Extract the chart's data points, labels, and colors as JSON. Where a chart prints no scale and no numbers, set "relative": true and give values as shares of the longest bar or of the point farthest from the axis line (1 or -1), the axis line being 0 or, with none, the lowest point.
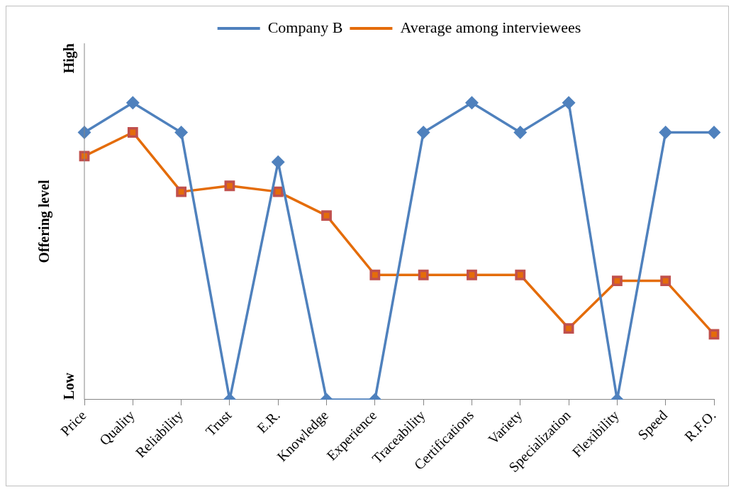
{
  "chart_data": {
    "type": "line",
    "ylabel": "Offering level",
    "relative": true,
    "categories": [
      "Price",
      "Quality",
      "Reliability",
      "Trust",
      "E.R.",
      "Knowledge",
      "Experience",
      "Traceability",
      "Certifications",
      "Variety",
      "Specialization",
      "Flexibility",
      "Speed",
      "R.F.O."
    ],
    "series": [
      {
        "name": "Company B",
        "color": "#4f81bd",
        "marker": "diamond",
        "values": [
          0.9,
          1,
          0.9,
          0,
          0.8,
          0,
          0,
          0.9,
          1,
          0.9,
          1,
          0,
          0.9,
          0.9
        ]
      },
      {
        "name": "Average among interviewees",
        "color": "#e46c0a",
        "marker": "square",
        "values": [
          0.82,
          0.9,
          0.7,
          0.72,
          0.7,
          0.62,
          0.42,
          0.42,
          0.42,
          0.42,
          0.24,
          0.4,
          0.4,
          0.22
        ]
      }
    ],
    "annotations": [
      "High",
      "Low"
    ],
    "legend": "top",
    "line_style": "solid"
  }
}
